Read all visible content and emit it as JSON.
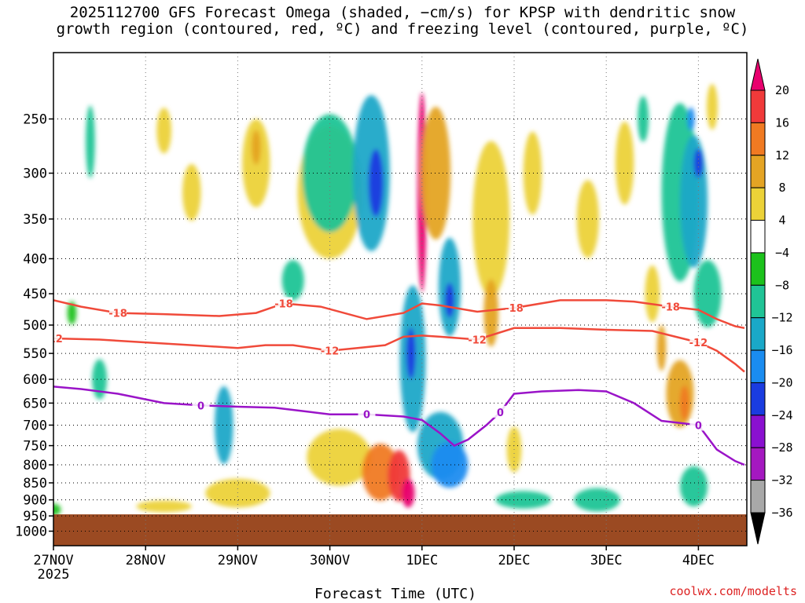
{
  "title": {
    "line1": "2025112700 GFS Forecast Omega (shaded, −cm/s) for KPSP with dendritic snow",
    "line2": "growth region (contoured, red, ºC) and freezing level (contoured, purple, ºC)"
  },
  "credit": "coolwx.com/modelts",
  "colors": {
    "dgz_contour": "#f04a3a",
    "freezing_contour": "#9a14c8",
    "terrain": "#9b4a22",
    "gridline": "#000000"
  },
  "chart_data": {
    "type": "heatmap",
    "xlabel": "Forecast Time (UTC)",
    "ylabel": "",
    "x_ticks": [
      {
        "label": "27NOV",
        "sublabel": "2025",
        "t": 0
      },
      {
        "label": "28NOV",
        "t": 1
      },
      {
        "label": "29NOV",
        "t": 2
      },
      {
        "label": "30NOV",
        "t": 3
      },
      {
        "label": "1DEC",
        "t": 4
      },
      {
        "label": "2DEC",
        "t": 5
      },
      {
        "label": "3DEC",
        "t": 6
      },
      {
        "label": "4DEC",
        "t": 7
      }
    ],
    "xlim_days": [
      0,
      7.5
    ],
    "y_scale": "log-pressure",
    "y_ticks": [
      "250",
      "300",
      "350",
      "400",
      "450",
      "500",
      "550",
      "600",
      "650",
      "700",
      "750",
      "800",
      "850",
      "900",
      "950",
      "1000"
    ],
    "ylim_hpa": [
      1050,
      200
    ],
    "grid": true,
    "colorbar": {
      "ticks": [
        "20",
        "16",
        "12",
        "8",
        "4",
        "−4",
        "−8",
        "−12",
        "−16",
        "−20",
        "−24",
        "−28",
        "−32",
        "−36"
      ],
      "colors": [
        "#e8006e",
        "#f03a3a",
        "#f07a22",
        "#e4a424",
        "#ecd238",
        "#ffffff",
        "#1cc21c",
        "#20c496",
        "#1aa8c8",
        "#1a8cf0",
        "#1a3ce0",
        "#8a10d0",
        "#a418c0",
        "#a8a8a8",
        "#000000"
      ]
    },
    "terrain_top_hpa": 945,
    "contour_labels": {
      "dgz_upper": "-18",
      "dgz_lower": "-12",
      "freezing": "0"
    },
    "dgz_upper_-18C": {
      "t": [
        0,
        0.3,
        0.7,
        1.2,
        1.8,
        2.2,
        2.5,
        2.9,
        3.4,
        3.8,
        4.0,
        4.2,
        4.6,
        5.0,
        5.5,
        6.0,
        6.3,
        6.7,
        7.0,
        7.2,
        7.4,
        7.5
      ],
      "p": [
        460,
        470,
        480,
        482,
        485,
        480,
        465,
        470,
        490,
        480,
        465,
        468,
        478,
        472,
        460,
        460,
        462,
        470,
        475,
        490,
        502,
        505
      ]
    },
    "dgz_lower_-12C": {
      "t": [
        0,
        0.5,
        1.0,
        1.5,
        2.0,
        2.3,
        2.6,
        3.0,
        3.3,
        3.6,
        3.8,
        4.0,
        4.2,
        4.6,
        5.0,
        5.5,
        6.0,
        6.5,
        7.0,
        7.2,
        7.4,
        7.5
      ],
      "p": [
        523,
        525,
        530,
        535,
        540,
        535,
        535,
        545,
        540,
        535,
        520,
        518,
        520,
        525,
        505,
        505,
        508,
        510,
        530,
        545,
        570,
        585
      ]
    },
    "freezing_0C": {
      "t": [
        0,
        0.3,
        0.7,
        1.2,
        1.6,
        2.0,
        2.4,
        2.8,
        3.0,
        3.4,
        3.8,
        4.0,
        4.2,
        4.35,
        4.5,
        4.7,
        4.85,
        5.0,
        5.3,
        5.7,
        6.0,
        6.3,
        6.6,
        7.0,
        7.2,
        7.4,
        7.5
      ],
      "p": [
        615,
        620,
        630,
        650,
        655,
        658,
        660,
        670,
        675,
        675,
        680,
        688,
        720,
        750,
        735,
        700,
        670,
        630,
        625,
        622,
        625,
        650,
        690,
        700,
        760,
        790,
        800
      ]
    },
    "omega_blobs": [
      {
        "t": 0.4,
        "p": 270,
        "dt": 0.05,
        "dp": 0.13,
        "v": -10
      },
      {
        "t": 0.5,
        "p": 600,
        "dt": 0.08,
        "dp": 0.07,
        "v": -8
      },
      {
        "t": 0.2,
        "p": 480,
        "dt": 0.05,
        "dp": 0.04,
        "v": -6
      },
      {
        "t": 0.0,
        "p": 930,
        "dt": 0.08,
        "dp": 0.02,
        "v": -7
      },
      {
        "t": 1.2,
        "p": 920,
        "dt": 0.3,
        "dp": 0.02,
        "v": 5
      },
      {
        "t": 2.0,
        "p": 880,
        "dt": 0.35,
        "dp": 0.05,
        "v": 6
      },
      {
        "t": 1.85,
        "p": 700,
        "dt": 0.1,
        "dp": 0.14,
        "v": -12
      },
      {
        "t": 2.2,
        "p": 290,
        "dt": 0.15,
        "dp": 0.16,
        "v": 6
      },
      {
        "t": 2.2,
        "p": 275,
        "dt": 0.05,
        "dp": 0.06,
        "v": 11
      },
      {
        "t": 1.5,
        "p": 320,
        "dt": 0.1,
        "dp": 0.1,
        "v": 5
      },
      {
        "t": 1.2,
        "p": 260,
        "dt": 0.08,
        "dp": 0.08,
        "v": 5
      },
      {
        "t": 2.6,
        "p": 430,
        "dt": 0.12,
        "dp": 0.07,
        "v": -8
      },
      {
        "t": 3.0,
        "p": 320,
        "dt": 0.35,
        "dp": 0.25,
        "v": 5
      },
      {
        "t": 3.0,
        "p": 300,
        "dt": 0.3,
        "dp": 0.22,
        "v": -9
      },
      {
        "t": 3.45,
        "p": 300,
        "dt": 0.2,
        "dp": 0.3,
        "v": -14
      },
      {
        "t": 3.5,
        "p": 310,
        "dt": 0.08,
        "dp": 0.12,
        "v": -21
      },
      {
        "t": 3.1,
        "p": 780,
        "dt": 0.35,
        "dp": 0.1,
        "v": 6
      },
      {
        "t": 3.55,
        "p": 820,
        "dt": 0.2,
        "dp": 0.1,
        "v": 13
      },
      {
        "t": 3.75,
        "p": 830,
        "dt": 0.12,
        "dp": 0.09,
        "v": 18
      },
      {
        "t": 3.85,
        "p": 880,
        "dt": 0.07,
        "dp": 0.05,
        "v": 22
      },
      {
        "t": 3.9,
        "p": 560,
        "dt": 0.14,
        "dp": 0.28,
        "v": -12
      },
      {
        "t": 3.88,
        "p": 550,
        "dt": 0.05,
        "dp": 0.09,
        "v": -22
      },
      {
        "t": 4.2,
        "p": 750,
        "dt": 0.25,
        "dp": 0.12,
        "v": -12
      },
      {
        "t": 4.3,
        "p": 800,
        "dt": 0.2,
        "dp": 0.08,
        "v": -16
      },
      {
        "t": 4.0,
        "p": 320,
        "dt": 0.05,
        "dp": 0.4,
        "v": 22
      },
      {
        "t": 4.15,
        "p": 300,
        "dt": 0.16,
        "dp": 0.25,
        "v": 8
      },
      {
        "t": 4.3,
        "p": 440,
        "dt": 0.12,
        "dp": 0.18,
        "v": -15
      },
      {
        "t": 4.3,
        "p": 460,
        "dt": 0.05,
        "dp": 0.06,
        "v": -20
      },
      {
        "t": 4.75,
        "p": 350,
        "dt": 0.2,
        "dp": 0.3,
        "v": 5
      },
      {
        "t": 4.75,
        "p": 480,
        "dt": 0.08,
        "dp": 0.12,
        "v": 10
      },
      {
        "t": 5.0,
        "p": 760,
        "dt": 0.08,
        "dp": 0.08,
        "v": 5
      },
      {
        "t": 5.1,
        "p": 900,
        "dt": 0.3,
        "dp": 0.03,
        "v": -8
      },
      {
        "t": 5.2,
        "p": 300,
        "dt": 0.1,
        "dp": 0.15,
        "v": 5
      },
      {
        "t": 5.9,
        "p": 900,
        "dt": 0.25,
        "dp": 0.04,
        "v": -9
      },
      {
        "t": 5.8,
        "p": 350,
        "dt": 0.12,
        "dp": 0.14,
        "v": 5
      },
      {
        "t": 6.2,
        "p": 290,
        "dt": 0.1,
        "dp": 0.15,
        "v": 5
      },
      {
        "t": 6.4,
        "p": 250,
        "dt": 0.06,
        "dp": 0.08,
        "v": -10
      },
      {
        "t": 6.5,
        "p": 450,
        "dt": 0.08,
        "dp": 0.1,
        "v": 5
      },
      {
        "t": 6.8,
        "p": 320,
        "dt": 0.2,
        "dp": 0.35,
        "v": -9
      },
      {
        "t": 6.95,
        "p": 330,
        "dt": 0.15,
        "dp": 0.25,
        "v": -12
      },
      {
        "t": 7.0,
        "p": 290,
        "dt": 0.05,
        "dp": 0.05,
        "v": -21
      },
      {
        "t": 6.92,
        "p": 250,
        "dt": 0.04,
        "dp": 0.04,
        "v": -17
      },
      {
        "t": 7.1,
        "p": 450,
        "dt": 0.15,
        "dp": 0.12,
        "v": -10
      },
      {
        "t": 6.8,
        "p": 630,
        "dt": 0.15,
        "dp": 0.12,
        "v": 8
      },
      {
        "t": 6.85,
        "p": 650,
        "dt": 0.05,
        "dp": 0.06,
        "v": 13
      },
      {
        "t": 6.6,
        "p": 540,
        "dt": 0.05,
        "dp": 0.08,
        "v": 10
      },
      {
        "t": 6.95,
        "p": 860,
        "dt": 0.15,
        "dp": 0.07,
        "v": -9
      },
      {
        "t": 7.15,
        "p": 240,
        "dt": 0.06,
        "dp": 0.08,
        "v": 6
      }
    ]
  }
}
